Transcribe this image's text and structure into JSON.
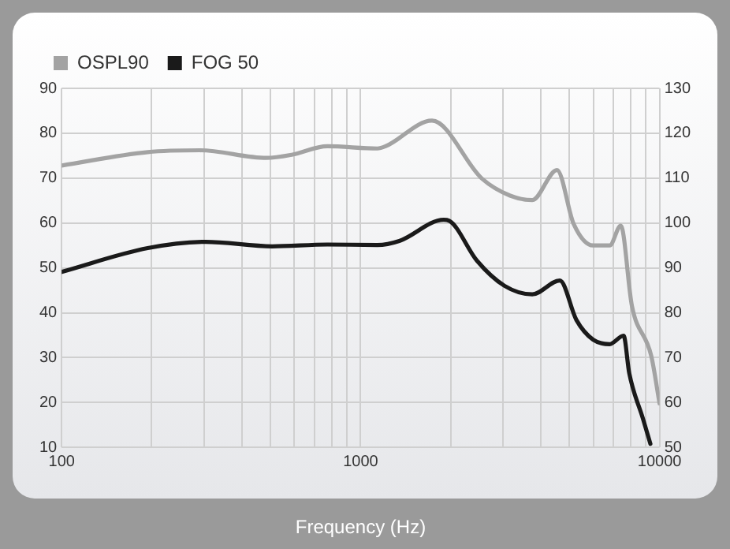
{
  "chart_data": {
    "type": "line",
    "xlabel": "Frequency (Hz)",
    "log": "x",
    "grid": true,
    "legend": "top left",
    "marker": "none",
    "line_style": "solid",
    "xlim": [
      100,
      10000
    ],
    "xticks": [
      100,
      {
        "value": 200,
        "label": null
      },
      {
        "value": 300,
        "label": null
      },
      {
        "value": 400,
        "label": null
      },
      {
        "value": 500,
        "label": null
      },
      {
        "value": 600,
        "label": null
      },
      {
        "value": 700,
        "label": null
      },
      {
        "value": 800,
        "label": null
      },
      {
        "value": 900,
        "label": null
      },
      1000,
      {
        "value": 2000,
        "label": null
      },
      {
        "value": 3000,
        "label": null
      },
      {
        "value": 4000,
        "label": null
      },
      {
        "value": 5000,
        "label": null
      },
      {
        "value": 6000,
        "label": null
      },
      {
        "value": 7000,
        "label": null
      },
      {
        "value": 8000,
        "label": null
      },
      {
        "value": 9000,
        "label": null
      },
      10000
    ],
    "ylim": [
      10,
      90
    ],
    "yticks": [
      10,
      20,
      30,
      40,
      50,
      60,
      70,
      80,
      90
    ],
    "y2lim": [
      50,
      130
    ],
    "y2ticks": [
      50,
      60,
      70,
      80,
      90,
      100,
      110,
      120,
      130
    ],
    "series": [
      {
        "name": "OSPL90",
        "color": "#a3a3a3",
        "axis": "y2",
        "x": [
          100,
          194,
          290,
          484,
          588,
          774,
          1137,
          1212,
          1733,
          2545,
          3162,
          3750,
          4540,
          5160,
          5995,
          6810,
          7420,
          8080,
          9380,
          10000
        ],
        "values": [
          112.8,
          115.8,
          116.2,
          114.5,
          115.2,
          117.1,
          116.6,
          117.1,
          122.8,
          109.9,
          106.1,
          105.1,
          111.8,
          99.8,
          95,
          95,
          99.4,
          81.6,
          70.4,
          59.8
        ]
      },
      {
        "name": "FOG 50",
        "color": "#1a1a1a",
        "axis": "y",
        "x": [
          100,
          194,
          303,
          506,
          774,
          1137,
          1347,
          1896,
          1977,
          2450,
          3030,
          3750,
          4640,
          5270,
          5995,
          6810,
          7580,
          7920,
          8800,
          9320
        ],
        "values": [
          49.1,
          54.4,
          55.8,
          54.8,
          55.2,
          55.1,
          56,
          60.7,
          60.5,
          51.6,
          46,
          44.1,
          47.2,
          38.4,
          34,
          33,
          34.9,
          26.5,
          16.4,
          10.8
        ]
      }
    ]
  }
}
